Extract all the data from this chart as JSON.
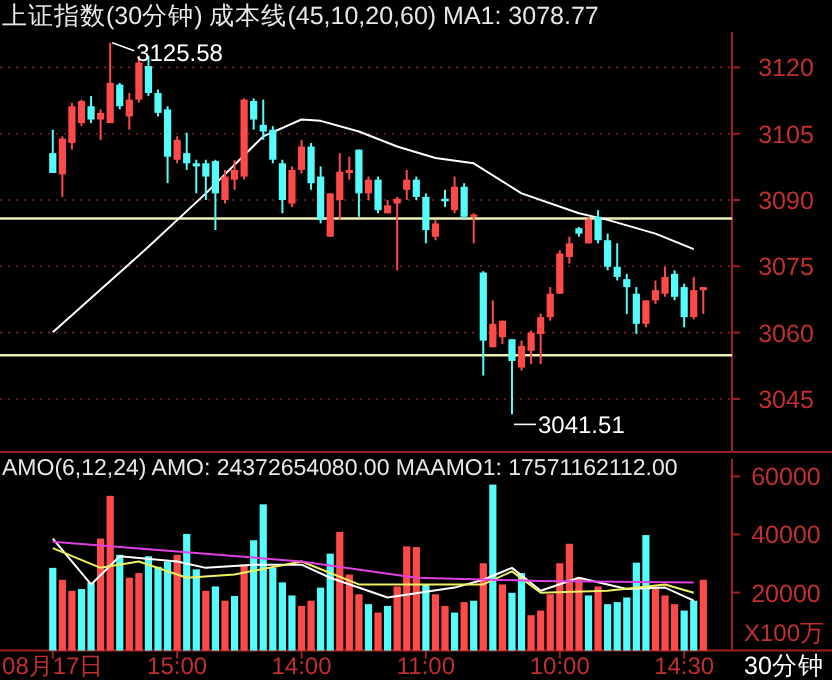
{
  "chart_data": [
    {
      "type": "candlestick",
      "title": "上证指数(30分钟) 成本线(45,10,20,60) MA1: 3078.77",
      "tick_labels": "y",
      "grid": "y",
      "categories": [
        null,
        null,
        null,
        null,
        null,
        null,
        null,
        null,
        null,
        null,
        null,
        null,
        null,
        null,
        null,
        null,
        null,
        null,
        null,
        null,
        null,
        null,
        null,
        null,
        null,
        null,
        null,
        null,
        null,
        null,
        null,
        null,
        null,
        null,
        null,
        null,
        null,
        null,
        null,
        null,
        null,
        null,
        null,
        null,
        null,
        null,
        null,
        null,
        null,
        null,
        null,
        null,
        null,
        null,
        null,
        null,
        null,
        null,
        null,
        null,
        null,
        null,
        null,
        null,
        null,
        null,
        null,
        null,
        null
      ],
      "ohlc": [
        [
          3100.6,
          3105.9,
          3096.1,
          3096.1
        ],
        [
          3095.8,
          3104.4,
          3090.7,
          3103.9
        ],
        [
          3102.9,
          3112,
          3101.4,
          3111.2
        ],
        [
          3107.4,
          3112.7,
          3106.7,
          3112.4
        ],
        [
          3111.2,
          3113.5,
          3107.4,
          3108.2
        ],
        [
          3108.2,
          3110.5,
          3103.6,
          3109.7
        ],
        [
          3107.4,
          3125.58,
          3107.4,
          3116.5
        ],
        [
          3116.1,
          3116.5,
          3110.5,
          3111.2
        ],
        [
          3108.9,
          3114.2,
          3105.9,
          3112.7
        ],
        [
          3112.7,
          3122.6,
          3112,
          3121.1
        ],
        [
          3120.3,
          3122.6,
          3113.5,
          3114.2
        ],
        [
          3114.2,
          3115,
          3108.9,
          3109.7
        ],
        [
          3110.5,
          3111.2,
          3093.8,
          3099.8
        ],
        [
          3099.1,
          3104.4,
          3098.3,
          3103.6
        ],
        [
          3100.6,
          3105.2,
          3096.8,
          3098.3
        ],
        [
          3098.3,
          3099.1,
          3091.5,
          3097.6
        ],
        [
          3098.3,
          3099.1,
          3090,
          3095.3
        ],
        [
          3098.8,
          3099.1,
          3083.2,
          3091.5
        ],
        [
          3090,
          3096.8,
          3089.2,
          3095.3
        ],
        [
          3094.6,
          3099,
          3092.3,
          3096.8
        ],
        [
          3095.3,
          3113,
          3094.6,
          3112.7
        ],
        [
          3112.4,
          3113,
          3105.9,
          3108.2
        ],
        [
          3107,
          3112.7,
          3103.6,
          3105.5
        ],
        [
          3105.9,
          3106.7,
          3098.3,
          3099.1
        ],
        [
          3098.3,
          3099.1,
          3087,
          3090
        ],
        [
          3089.2,
          3097.6,
          3088.4,
          3096.8
        ],
        [
          3096.8,
          3103.6,
          3096,
          3102.1
        ],
        [
          3102.1,
          3102.9,
          3092.3,
          3093.8
        ],
        [
          3095.3,
          3097.6,
          3084.7,
          3085.5
        ],
        [
          3081.7,
          3091.5,
          3081.7,
          3091.5
        ],
        [
          3090,
          3100.6,
          3085.5,
          3096.4
        ],
        [
          3096.1,
          3099.8,
          3094.6,
          3096.8
        ],
        [
          3101.4,
          3101.4,
          3086.2,
          3091.5
        ],
        [
          3091.5,
          3095.3,
          3090,
          3094.6
        ],
        [
          3094.6,
          3095.3,
          3087,
          3087.7
        ],
        [
          3087,
          3090,
          3087,
          3088.8
        ],
        [
          3089.2,
          3090.7,
          3074.1,
          3090.3
        ],
        [
          3092.3,
          3096.8,
          3090,
          3094.6
        ],
        [
          3094.6,
          3095.3,
          3090,
          3090.7
        ],
        [
          3090.7,
          3091.5,
          3080.2,
          3083.2
        ],
        [
          3081.7,
          3085.5,
          3080.9,
          3084.7
        ],
        [
          3090.3,
          3092.3,
          3088.4,
          3089.7
        ],
        [
          3087.7,
          3095.3,
          3087,
          3093
        ],
        [
          3093,
          3093.8,
          3085.5,
          3086.2
        ],
        [
          3086.2,
          3087,
          3080.2,
          3086.7
        ],
        [
          3073.6,
          3073.9,
          3050.3,
          3058.2
        ],
        [
          3056.7,
          3067.3,
          3056.7,
          3062
        ],
        [
          3059,
          3062.7,
          3057.4,
          3062.7
        ],
        [
          3058.5,
          3058.5,
          3041.51,
          3053.6
        ],
        [
          3052.1,
          3058.2,
          3051.4,
          3057
        ],
        [
          3055.9,
          3060.5,
          3052.9,
          3060
        ],
        [
          3059.7,
          3064.3,
          3052.9,
          3063.5
        ],
        [
          3063.5,
          3070.3,
          3062.7,
          3068.8
        ],
        [
          3068.8,
          3078.6,
          3068.8,
          3077.9
        ],
        [
          3077.1,
          3081.7,
          3075.6,
          3080.2
        ],
        [
          3083.6,
          3083.9,
          3081.7,
          3082.4
        ],
        [
          3080.2,
          3086.2,
          3080.2,
          3085.5
        ],
        [
          3086.2,
          3087.7,
          3080.2,
          3080.9
        ],
        [
          3080.9,
          3082.4,
          3074.1,
          3074.9
        ],
        [
          3074.9,
          3080.2,
          3071.8,
          3072.6
        ],
        [
          3072.1,
          3073.3,
          3064.2,
          3070.3
        ],
        [
          3068.8,
          3070.3,
          3059.7,
          3062
        ],
        [
          3062,
          3067.3,
          3061.2,
          3067.3
        ],
        [
          3067.3,
          3071.8,
          3066.5,
          3069.6
        ],
        [
          3068.8,
          3074.9,
          3068.1,
          3072.6
        ],
        [
          3073.3,
          3074.1,
          3067.3,
          3068.1
        ],
        [
          3070.3,
          3071.1,
          3061.2,
          3063.5
        ],
        [
          3063.5,
          3072.6,
          3063,
          3069.6
        ],
        [
          3069.6,
          3070.3,
          3064.2,
          3070.3
        ]
      ],
      "colors": [
        "#54fcfc",
        "#ff4a4a",
        "#ff4a4a",
        "#ff4a4a",
        "#54fcfc",
        "#ff4a4a",
        "#ff4a4a",
        "#54fcfc",
        "#ff4a4a",
        "#ff4a4a",
        "#54fcfc",
        "#54fcfc",
        "#54fcfc",
        "#ff4a4a",
        "#54fcfc",
        "#54fcfc",
        "#54fcfc",
        "#54fcfc",
        "#ff4a4a",
        "#ff4a4a",
        "#ff4a4a",
        "#54fcfc",
        "#54fcfc",
        "#54fcfc",
        "#54fcfc",
        "#ff4a4a",
        "#ff4a4a",
        "#54fcfc",
        "#54fcfc",
        "#ff4a4a",
        "#ff4a4a",
        "#ff4a4a",
        "#54fcfc",
        "#ff4a4a",
        "#54fcfc",
        "#ff4a4a",
        "#ff4a4a",
        "#ff4a4a",
        "#54fcfc",
        "#54fcfc",
        "#ff4a4a",
        "#54fcfc",
        "#ff4a4a",
        "#54fcfc",
        "#ff4a4a",
        "#54fcfc",
        "#ff4a4a",
        "#ff4a4a",
        "#54fcfc",
        "#ff4a4a",
        "#ff4a4a",
        "#ff4a4a",
        "#ff4a4a",
        "#ff4a4a",
        "#ff4a4a",
        "#54fcfc",
        "#ff4a4a",
        "#54fcfc",
        "#54fcfc",
        "#54fcfc",
        "#54fcfc",
        "#54fcfc",
        "#ff4a4a",
        "#ff4a4a",
        "#ff4a4a",
        "#54fcfc",
        "#54fcfc",
        "#ff4a4a",
        "#ff4a4a"
      ],
      "series": [
        {
          "type": "line",
          "color": "#ffffff",
          "values": [
            3060.1,
            null,
            null,
            null,
            null,
            null,
            null,
            null,
            null,
            null,
            3079.4,
            null,
            null,
            null,
            null,
            null,
            3091.5,
            null,
            null,
            null,
            null,
            null,
            3104.4,
            null,
            null,
            null,
            3108.2,
            null,
            3107.9,
            null,
            null,
            null,
            3105.5,
            null,
            null,
            null,
            3102.1,
            null,
            null,
            null,
            3099.5,
            null,
            null,
            null,
            3098.3,
            null,
            null,
            null,
            null,
            3091.5,
            null,
            null,
            null,
            null,
            null,
            3087,
            null,
            null,
            3085.5,
            null,
            null,
            null,
            null,
            3082.4,
            null,
            null,
            null,
            3078.9,
            null
          ]
        }
      ],
      "ylim": [
        3033,
        3128
      ],
      "yticks": [
        3045,
        3060,
        3075,
        3090,
        3105,
        3120
      ],
      "ref_lines": [
        {
          "axis": "y",
          "value": 3085.8,
          "color": "#f0f0b0"
        },
        {
          "axis": "y",
          "value": 3054.9,
          "color": "#f0f0b0"
        }
      ],
      "annotations": [
        "3125.58",
        "3041.51"
      ]
    },
    {
      "type": "bar",
      "title": "AMO(6,12,24) AMO: 24372654080.00 MAAMO1: 17571162112.00",
      "ylabel": "X100万",
      "annotations": [
        "30分钟"
      ],
      "categories": [
        "08月17日",
        null,
        null,
        null,
        null,
        null,
        null,
        null,
        null,
        null,
        null,
        null,
        null,
        "15:00",
        null,
        null,
        null,
        null,
        null,
        null,
        null,
        null,
        null,
        null,
        null,
        null,
        "14:00",
        null,
        null,
        null,
        null,
        null,
        null,
        null,
        null,
        null,
        null,
        null,
        null,
        "11:00",
        null,
        null,
        null,
        null,
        null,
        null,
        null,
        null,
        null,
        null,
        null,
        null,
        null,
        "10:00",
        null,
        null,
        null,
        null,
        null,
        null,
        null,
        null,
        null,
        null,
        null,
        null,
        "14:30",
        null,
        null
      ],
      "series": [
        {
          "type": "bar",
          "values": [
            28500,
            24400,
            20600,
            21200,
            23500,
            38600,
            53300,
            33000,
            25100,
            26700,
            32500,
            28900,
            30700,
            33000,
            40200,
            28000,
            20600,
            22100,
            17200,
            18800,
            29600,
            38000,
            50400,
            28500,
            23500,
            19000,
            15400,
            17200,
            21700,
            33400,
            40900,
            26200,
            19400,
            16000,
            13100,
            15400,
            22100,
            35900,
            35700,
            22800,
            19400,
            15400,
            13100,
            16700,
            17200,
            30100,
            57200,
            22800,
            19900,
            26700,
            12200,
            13800,
            19400,
            30100,
            36800,
            25100,
            19000,
            22100,
            16000,
            16700,
            18300,
            30300,
            39800,
            22100,
            19000,
            16000,
            13800,
            17200,
            24400
          ],
          "colors": [
            "#54fcfc",
            "#ff4a4a",
            "#ff4a4a",
            "#54fcfc",
            "#54fcfc",
            "#ff4a4a",
            "#ff4a4a",
            "#54fcfc",
            "#ff4a4a",
            "#ff4a4a",
            "#54fcfc",
            "#54fcfc",
            "#54fcfc",
            "#ff4a4a",
            "#54fcfc",
            "#54fcfc",
            "#ff4a4a",
            "#54fcfc",
            "#ff4a4a",
            "#54fcfc",
            "#ff4a4a",
            "#54fcfc",
            "#54fcfc",
            "#54fcfc",
            "#54fcfc",
            "#54fcfc",
            "#ff4a4a",
            "#ff4a4a",
            "#54fcfc",
            "#54fcfc",
            "#ff4a4a",
            "#ff4a4a",
            "#ff4a4a",
            "#54fcfc",
            "#ff4a4a",
            "#54fcfc",
            "#ff4a4a",
            "#ff4a4a",
            "#ff4a4a",
            "#54fcfc",
            "#ff4a4a",
            "#ff4a4a",
            "#54fcfc",
            "#ff4a4a",
            "#54fcfc",
            "#ff4a4a",
            "#54fcfc",
            "#ff4a4a",
            "#54fcfc",
            "#54fcfc",
            "#ff4a4a",
            "#ff4a4a",
            "#ff4a4a",
            "#ff4a4a",
            "#ff4a4a",
            "#ff4a4a",
            "#54fcfc",
            "#ff4a4a",
            "#54fcfc",
            "#54fcfc",
            "#54fcfc",
            "#54fcfc",
            "#54fcfc",
            "#ff4a4a",
            "#ff4a4a",
            "#ff4a4a",
            "#54fcfc",
            "#54fcfc",
            "#ff4a4a"
          ]
        },
        {
          "type": "line",
          "color": "#ffffff",
          "values": [
            38600,
            null,
            null,
            null,
            22800,
            null,
            null,
            32500,
            null,
            null,
            null,
            null,
            null,
            30700,
            null,
            null,
            28500,
            null,
            null,
            null,
            null,
            29600,
            null,
            null,
            null,
            null,
            29600,
            null,
            null,
            25100,
            null,
            null,
            null,
            null,
            null,
            18300,
            null,
            null,
            null,
            null,
            null,
            null,
            21700,
            null,
            null,
            24400,
            null,
            null,
            28500,
            null,
            null,
            20600,
            null,
            null,
            null,
            25100,
            null,
            null,
            null,
            null,
            21200,
            null,
            null,
            null,
            21700,
            null,
            null,
            17200,
            null
          ]
        },
        {
          "type": "line",
          "color": "#f0f060",
          "values": [
            35300,
            null,
            null,
            null,
            null,
            28500,
            null,
            null,
            null,
            30700,
            null,
            null,
            null,
            null,
            25100,
            null,
            null,
            null,
            null,
            26200,
            null,
            null,
            null,
            null,
            null,
            null,
            30700,
            null,
            null,
            null,
            null,
            null,
            22800,
            null,
            null,
            null,
            null,
            null,
            22800,
            null,
            null,
            null,
            null,
            null,
            null,
            22800,
            null,
            null,
            27300,
            null,
            null,
            19900,
            null,
            null,
            null,
            null,
            null,
            null,
            20600,
            null,
            null,
            null,
            null,
            null,
            22800,
            null,
            null,
            19900,
            null
          ]
        },
        {
          "type": "line",
          "color": "#e040e0",
          "values": [
            37500,
            null,
            null,
            null,
            null,
            null,
            null,
            null,
            null,
            null,
            null,
            null,
            null,
            34100,
            null,
            null,
            null,
            null,
            null,
            null,
            null,
            null,
            null,
            null,
            null,
            null,
            30700,
            null,
            null,
            null,
            null,
            null,
            null,
            null,
            null,
            null,
            null,
            null,
            25100,
            null,
            null,
            null,
            null,
            null,
            null,
            null,
            null,
            null,
            null,
            null,
            null,
            24000,
            null,
            null,
            null,
            null,
            null,
            null,
            null,
            null,
            null,
            null,
            null,
            null,
            null,
            null,
            null,
            23500,
            null
          ]
        }
      ],
      "ylim": [
        0,
        66000
      ],
      "yticks": [
        20000,
        40000,
        60000
      ]
    }
  ]
}
